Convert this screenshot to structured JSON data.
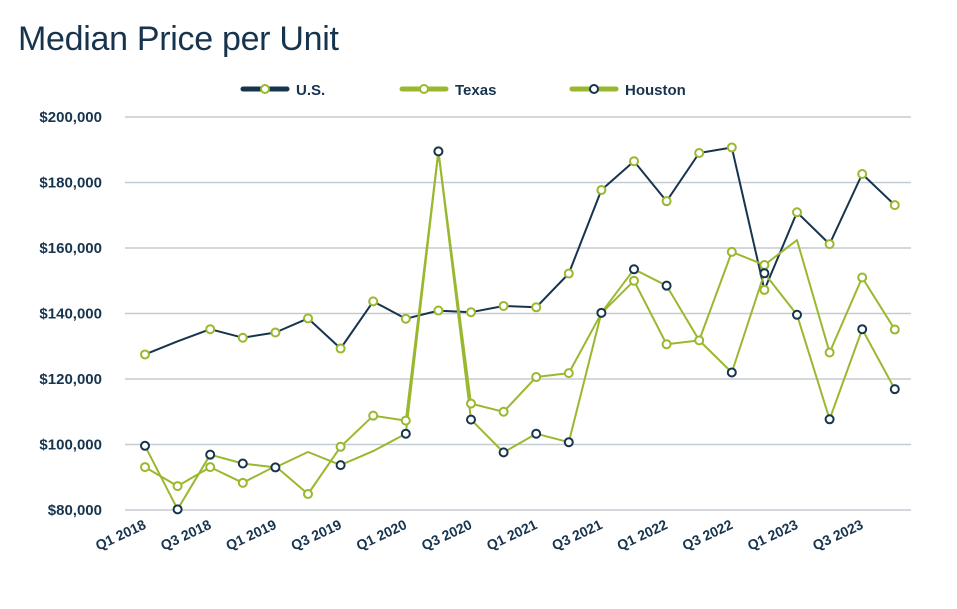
{
  "chart_data": {
    "type": "line",
    "title": "Median Price per Unit",
    "xlabel": "",
    "ylabel": "",
    "ylim": [
      80000,
      200000
    ],
    "y_ticks": [
      80000,
      100000,
      120000,
      140000,
      160000,
      180000,
      200000
    ],
    "y_tick_labels": [
      "$80,000",
      "$100,000",
      "$120,000",
      "$140,000",
      "$160,000",
      "$180,000",
      "$200,000"
    ],
    "grid": true,
    "legend_position": "top-center",
    "x": [
      "Q1 2018",
      "Q2 2018",
      "Q3 2018",
      "Q4 2018",
      "Q1 2019",
      "Q2 2019",
      "Q3 2019",
      "Q4 2019",
      "Q1 2020",
      "Q2 2020",
      "Q3 2020",
      "Q4 2020",
      "Q1 2021",
      "Q2 2021",
      "Q3 2021",
      "Q4 2021",
      "Q1 2022",
      "Q2 2022",
      "Q3 2022",
      "Q4 2022",
      "Q1 2023",
      "Q2 2023",
      "Q3 2023",
      "Q4 2023"
    ],
    "x_tick_labels": [
      "Q1 2018",
      "",
      "Q3 2018",
      "",
      "Q1 2019",
      "",
      "Q3 2019",
      "",
      "Q1 2020",
      "",
      "Q3 2020",
      "",
      "Q1 2021",
      "",
      "Q3 2021",
      "",
      "Q1 2022",
      "",
      "Q3 2022",
      "",
      "Q1 2023",
      "",
      "Q3 2023",
      ""
    ],
    "series": [
      {
        "name": "U.S.",
        "line_color": "#17344f",
        "marker_color": "#9ab82f",
        "markers": [
          true,
          false,
          true,
          true,
          true,
          true,
          true,
          true,
          true,
          true,
          true,
          true,
          true,
          true,
          true,
          true,
          true,
          true,
          true,
          true,
          true,
          true,
          true,
          true
        ],
        "values": [
          127500,
          131500,
          135200,
          132600,
          134200,
          138500,
          129300,
          143700,
          138400,
          140900,
          140400,
          142300,
          141900,
          152200,
          177700,
          186500,
          174300,
          189000,
          190700,
          147200,
          170900,
          161200,
          182600,
          173100
        ]
      },
      {
        "name": "Texas",
        "line_color": "#9ab82f",
        "marker_color": "#9ab82f",
        "markers": [
          true,
          true,
          true,
          true,
          false,
          true,
          true,
          true,
          true,
          true,
          true,
          true,
          true,
          true,
          false,
          true,
          true,
          true,
          true,
          true,
          false,
          true,
          true,
          true
        ],
        "values": [
          93100,
          87300,
          93100,
          88300,
          93400,
          84900,
          99300,
          108800,
          107300,
          189500,
          112500,
          110000,
          120600,
          121800,
          140100,
          150000,
          130600,
          131800,
          158800,
          154800,
          162400,
          128100,
          151000,
          135100
        ]
      },
      {
        "name": "Houston",
        "line_color": "#9ab82f",
        "marker_color": "#17344f",
        "markers": [
          true,
          true,
          true,
          true,
          true,
          false,
          true,
          false,
          true,
          true,
          true,
          true,
          true,
          true,
          true,
          true,
          true,
          false,
          true,
          true,
          true,
          true,
          true,
          true
        ],
        "values": [
          99600,
          80200,
          96900,
          94200,
          93000,
          97700,
          93700,
          98000,
          103300,
          189500,
          107600,
          97600,
          103300,
          100700,
          140200,
          153500,
          148500,
          131800,
          122000,
          152300,
          139600,
          107700,
          135200,
          116900
        ]
      }
    ]
  }
}
